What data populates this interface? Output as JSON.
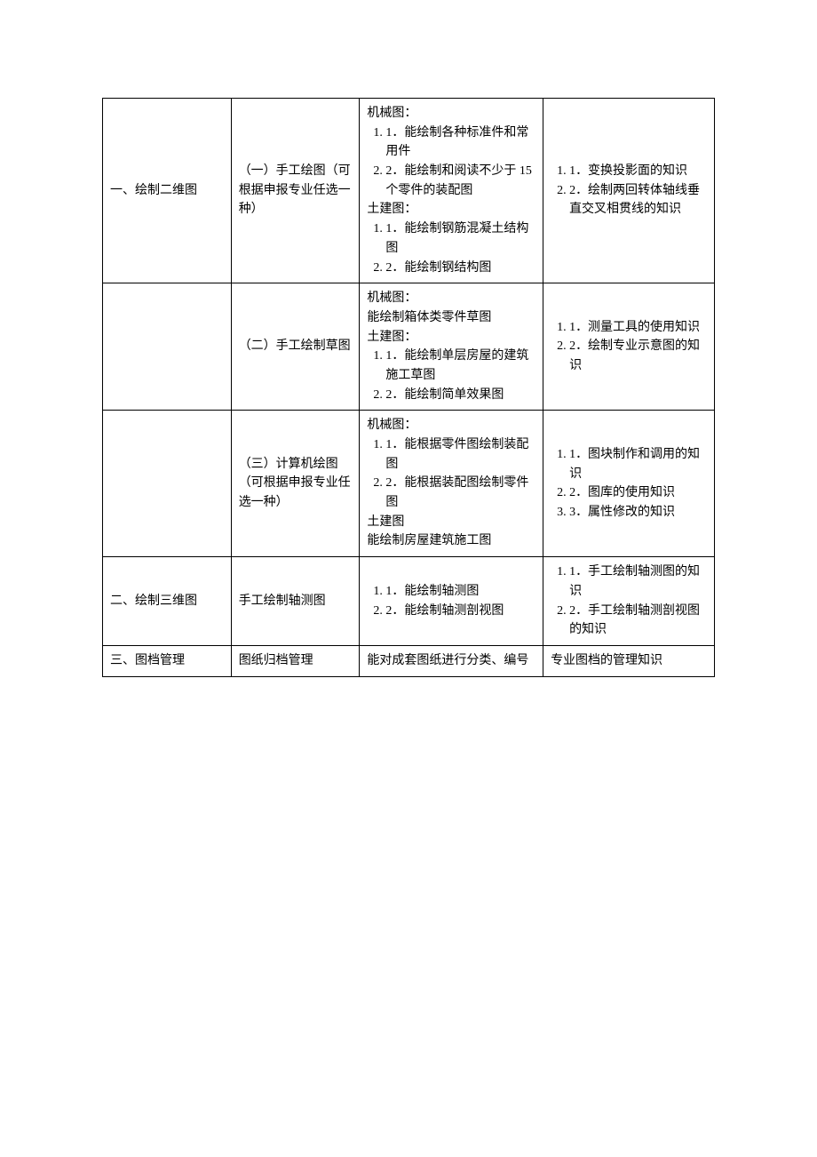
{
  "table": {
    "border_color": "#000000",
    "background_color": "#ffffff",
    "font_size": 14,
    "text_color": "#000000",
    "col_widths_pct": [
      21,
      21,
      30,
      28
    ],
    "rows": [
      {
        "c1": "一、绘制二维图",
        "c2": "（一）手工绘图（可根据申报专业任选一种）",
        "c3": {
          "h1": "机械图：",
          "i1": "1．能绘制各种标准件和常用件",
          "i2": "2．能绘制和阅读不少于 15 个零件的装配图",
          "h2": "土建图：",
          "i3": "1．能绘制钢筋混凝土结构图",
          "i4": "2．能绘制钢结构图"
        },
        "c4": {
          "i1": "1．变换投影面的知识",
          "i2": "2．绘制两回转体轴线垂直交叉相贯线的知识"
        }
      },
      {
        "c1": "",
        "c2": "（二）手工绘制草图",
        "c3": {
          "h1": "机械图：",
          "p1": "能绘制箱体类零件草图",
          "h2": "土建图：",
          "i1": "1．能绘制单层房屋的建筑施工草图",
          "i2": "2．能绘制简单效果图"
        },
        "c4": {
          "i1": "1．测量工具的使用知识",
          "i2": "2．绘制专业示意图的知识"
        }
      },
      {
        "c1": "",
        "c2": "（三）计算机绘图（可根据申报专业任选一种）",
        "c3": {
          "h1": "机械图：",
          "i1": "1．能根据零件图绘制装配图",
          "i2": "2．能根据装配图绘制零件图",
          "h2": "土建图",
          "p1": "能绘制房屋建筑施工图"
        },
        "c4": {
          "i1": "1．图块制作和调用的知识",
          "i2": "2．图库的使用知识",
          "i3": "3．属性修改的知识"
        }
      },
      {
        "c1": "二、绘制三维图",
        "c2": "手工绘制轴测图",
        "c3": {
          "i1": "1．能绘制轴测图",
          "i2": "2．能绘制轴测剖视图"
        },
        "c4": {
          "i1": "1．手工绘制轴测图的知识",
          "i2": "2．手工绘制轴测剖视图的知识"
        }
      },
      {
        "c1": "三、图档管理",
        "c2": "图纸归档管理",
        "c3": {
          "p1": "能对成套图纸进行分类、编号"
        },
        "c4": {
          "p1": "专业图档的管理知识"
        }
      }
    ]
  }
}
